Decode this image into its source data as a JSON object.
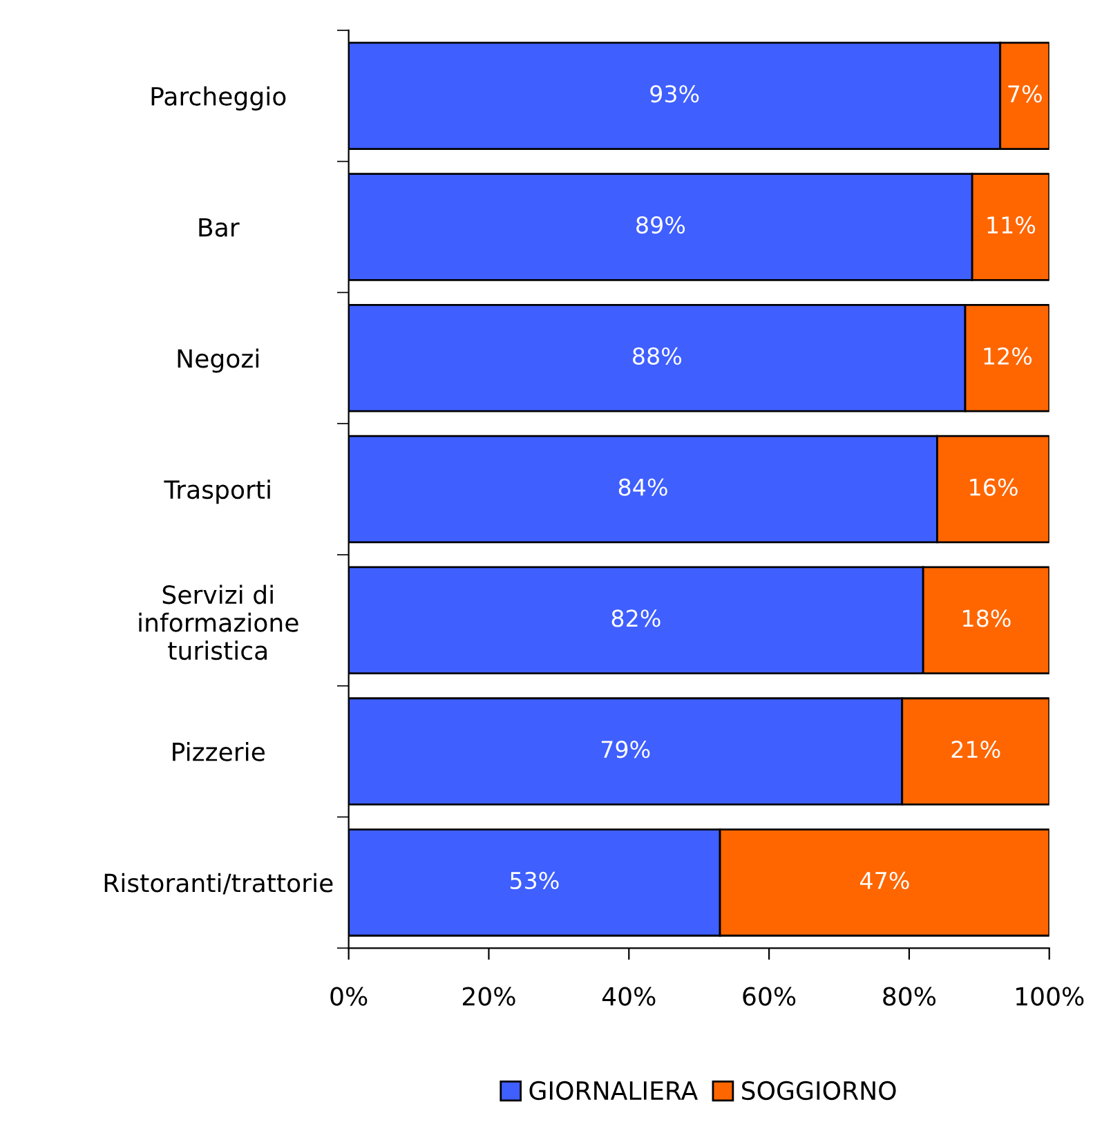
{
  "chart_data": {
    "type": "bar",
    "orientation": "horizontal",
    "stacked": true,
    "categories": [
      "Parcheggio",
      "Bar",
      "Negozi",
      "Trasporti",
      "Servizi di\ninformazione\nturistica",
      "Pizzerie",
      "Ristoranti/trattorie"
    ],
    "series": [
      {
        "name": "GIORNALIERA",
        "color": "#3f5fff",
        "values": [
          93,
          89,
          88,
          84,
          82,
          79,
          53
        ],
        "value_labels": [
          "93%",
          "89%",
          "88%",
          "84%",
          "82%",
          "79%",
          "53%"
        ]
      },
      {
        "name": "SOGGIORNO",
        "color": "#ff6600",
        "values": [
          7,
          11,
          12,
          16,
          18,
          21,
          47
        ],
        "value_labels": [
          "7%",
          "11%",
          "12%",
          "16%",
          "18%",
          "21%",
          "47%"
        ]
      }
    ],
    "xlim": [
      0,
      100
    ],
    "xticks": [
      {
        "value": 0,
        "label": "0%"
      },
      {
        "value": 20,
        "label": "20%"
      },
      {
        "value": 40,
        "label": "40%"
      },
      {
        "value": 60,
        "label": "60%"
      },
      {
        "value": 80,
        "label": "80%"
      },
      {
        "value": 100,
        "label": "100%"
      }
    ],
    "grid": false,
    "legend": "bottom"
  }
}
